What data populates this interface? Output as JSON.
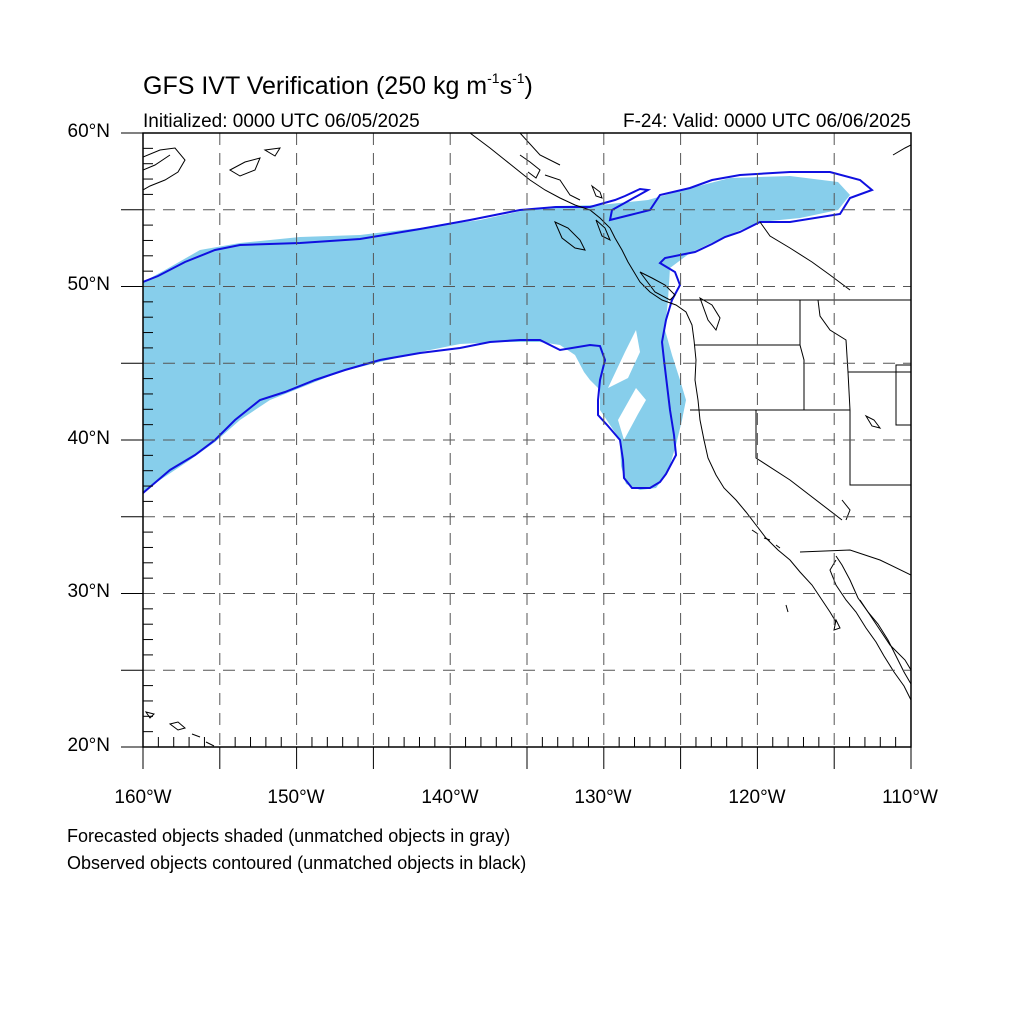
{
  "header": {
    "title": "GFS IVT Verification (250 kg m",
    "title_exp1": "-1",
    "title_mid": "s",
    "title_exp2": "-1",
    "title_end": ")",
    "initialized": "Initialized: 0000 UTC 06/05/2025",
    "valid": "F-24: Valid: 0000 UTC 06/06/2025"
  },
  "axes": {
    "lat_labels": [
      "60°N",
      "50°N",
      "40°N",
      "30°N",
      "20°N"
    ],
    "lon_labels": [
      "160°W",
      "150°W",
      "140°W",
      "130°W",
      "120°W",
      "110°W"
    ],
    "lat_range": [
      20,
      60
    ],
    "lon_range": [
      -160,
      -110
    ]
  },
  "legend": {
    "line1": "Forecasted objects shaded (unmatched objects in gray)",
    "line2": "Observed objects contoured (unmatched objects in black)"
  },
  "colors": {
    "forecast_fill": "#87ceeb",
    "observed_contour": "#1010e0",
    "coastline": "#000000",
    "grid": "#555555"
  }
}
